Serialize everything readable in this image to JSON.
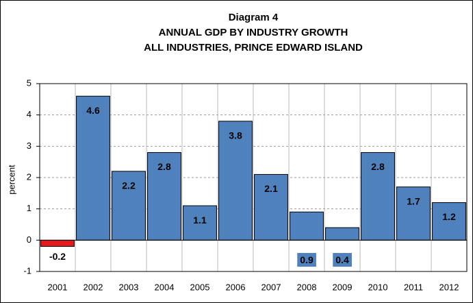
{
  "chart_data": {
    "type": "bar",
    "title": [
      "Diagram 4",
      "ANNUAL GDP BY INDUSTRY GROWTH",
      "ALL INDUSTRIES, PRINCE EDWARD ISLAND"
    ],
    "y_label": "percent",
    "categories": [
      "2001",
      "2002",
      "2003",
      "2004",
      "2005",
      "2006",
      "2007",
      "2008",
      "2009",
      "2010",
      "2011",
      "2012"
    ],
    "values": [
      -0.2,
      4.6,
      2.2,
      2.8,
      1.1,
      3.8,
      2.1,
      0.9,
      0.4,
      2.8,
      1.7,
      1.2
    ],
    "color": "#4f81bd",
    "negative_color": "#e8191c",
    "ylim": [
      -1,
      5
    ],
    "yticks": [
      -1,
      0,
      1,
      2,
      3,
      4,
      5
    ],
    "grid": true
  }
}
